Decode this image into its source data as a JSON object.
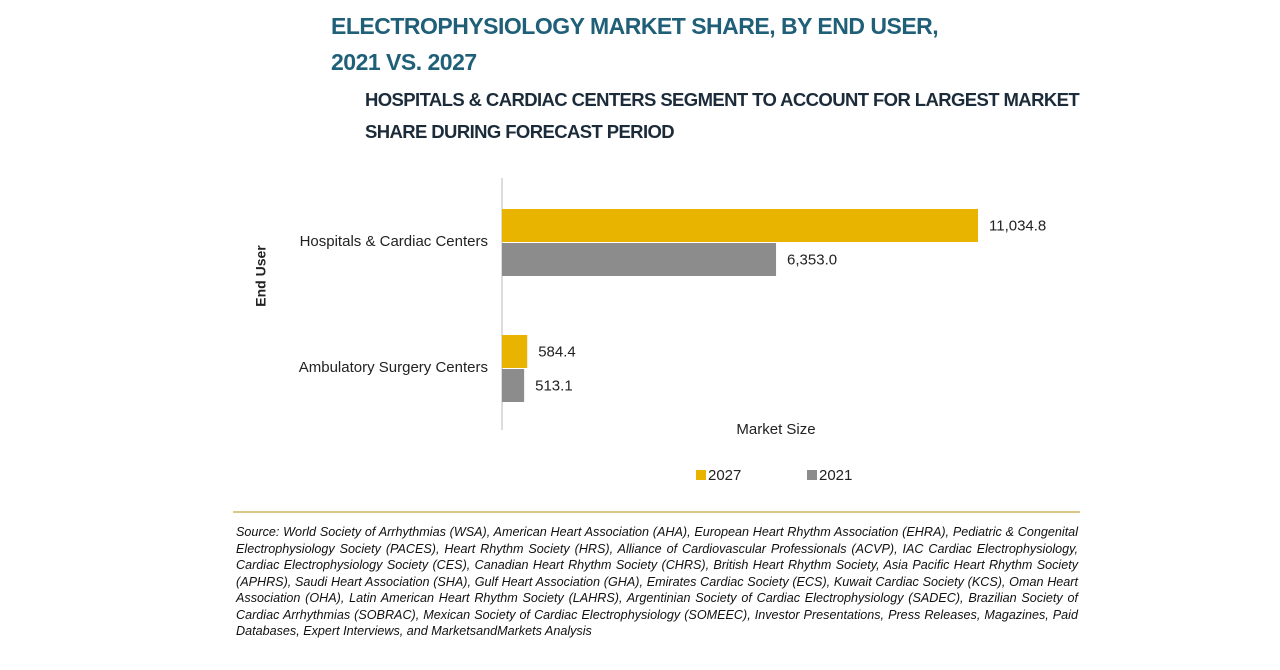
{
  "chart_data": {
    "type": "hbar",
    "title": "ELECTROPHYSIOLOGY MARKET SHARE, BY END USER, 2021 VS. 2027",
    "subtitle": "HOSPITALS & CARDIAC CENTERS SEGMENT TO ACCOUNT FOR LARGEST MARKET SHARE DURING FORECAST PERIOD",
    "x_label": "Market Size",
    "y_label": "End User",
    "categories": [
      "Hospitals & Cardiac Centers",
      "Ambulatory Surgery Centers"
    ],
    "series": [
      {
        "name": "2027",
        "color": "#e8b400",
        "values": [
          11034.8,
          584.4
        ],
        "value_labels": [
          "11,034.8",
          "584.4"
        ]
      },
      {
        "name": "2021",
        "color": "#8c8c8c",
        "values": [
          6353.0,
          513.1
        ],
        "value_labels": [
          "6,353.0",
          "513.1"
        ]
      }
    ],
    "xlim": [
      0,
      12000
    ],
    "legend": "bottom",
    "source": "Source: World Society of Arrhythmias (WSA), American Heart Association (AHA), European Heart Rhythm Association (EHRA), Pediatric & Congenital Electrophysiology Society (PACES), Heart Rhythm Society (HRS), Alliance of Cardiovascular Professionals (ACVP), IAC Cardiac Electrophysiology, Cardiac Electrophysiology Society (CES), Canadian Heart Rhythm Society (CHRS), British Heart Rhythm Society, Asia Pacific Heart Rhythm Society (APHRS), Saudi Heart Association (SHA), Gulf Heart Association (GHA), Emirates Cardiac Society (ECS), Kuwait Cardiac Society (KCS), Oman Heart Association (OHA), Latin American Heart Rhythm Society (LAHRS), Argentinian Society of Cardiac Electrophysiology (SADEC), Brazilian Society of Cardiac Arrhythmias (SOBRAC), Mexican Society of Cardiac Electrophysiology (SOMEEC), Investor Presentations, Press Releases, Magazines, Paid Databases, Expert Interviews, and MarketsandMarkets Analysis"
  }
}
